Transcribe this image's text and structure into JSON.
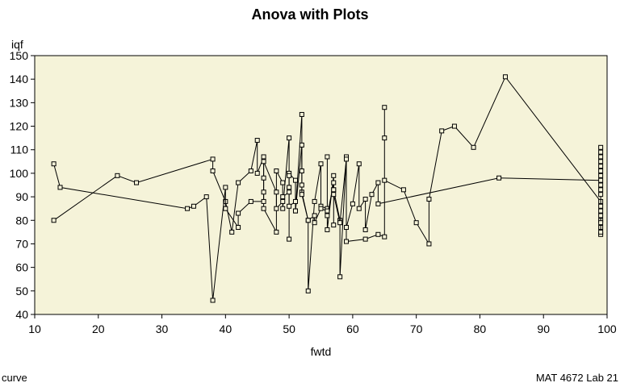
{
  "chart_data": {
    "type": "line",
    "title": "Anova with Plots",
    "xlabel": "fwtd",
    "ylabel": "iqf",
    "xlim": [
      10,
      100
    ],
    "ylim": [
      40,
      150
    ],
    "x_ticks": [
      10,
      20,
      30,
      40,
      50,
      60,
      70,
      80,
      90,
      100
    ],
    "y_ticks": [
      40,
      50,
      60,
      70,
      80,
      90,
      100,
      110,
      120,
      130,
      140,
      150
    ],
    "background": "#f5f3d9",
    "grid": false,
    "legend": "none",
    "marker": "square",
    "series": [
      {
        "points": [
          [
            13,
            80
          ],
          [
            23,
            99
          ],
          [
            26,
            96
          ],
          [
            38,
            106
          ],
          [
            38,
            101
          ],
          [
            40,
            88
          ],
          [
            41,
            75
          ],
          [
            42,
            96
          ],
          [
            44,
            101
          ],
          [
            45,
            114
          ],
          [
            45,
            100
          ],
          [
            46,
            107
          ],
          [
            46,
            85
          ],
          [
            48,
            75
          ],
          [
            48,
            101
          ],
          [
            49,
            96
          ],
          [
            49,
            85
          ],
          [
            50,
            115
          ],
          [
            50,
            72
          ],
          [
            50,
            100
          ],
          [
            51,
            97
          ],
          [
            51,
            84
          ],
          [
            52,
            125
          ],
          [
            52,
            92
          ],
          [
            53,
            80
          ],
          [
            53,
            50
          ],
          [
            54,
            88
          ],
          [
            55,
            104
          ],
          [
            55,
            86
          ],
          [
            56,
            85
          ],
          [
            56,
            107
          ],
          [
            56,
            76
          ],
          [
            57,
            99
          ],
          [
            57,
            78
          ],
          [
            57,
            93
          ],
          [
            58,
            80
          ],
          [
            58,
            56
          ],
          [
            59,
            107
          ],
          [
            59,
            71
          ],
          [
            62,
            72
          ],
          [
            64,
            74
          ],
          [
            65,
            73
          ],
          [
            65,
            128
          ],
          [
            65,
            115
          ],
          [
            65,
            97
          ],
          [
            68,
            93
          ],
          [
            70,
            79
          ],
          [
            72,
            70
          ],
          [
            72,
            89
          ],
          [
            74,
            118
          ],
          [
            76,
            120
          ],
          [
            79,
            111
          ],
          [
            84,
            141
          ],
          [
            99,
            88
          ],
          [
            99,
            80
          ],
          [
            99,
            77
          ]
        ]
      },
      {
        "points": [
          [
            13,
            104
          ],
          [
            14,
            94
          ],
          [
            34,
            85
          ],
          [
            35,
            86
          ],
          [
            37,
            90
          ],
          [
            38,
            46
          ],
          [
            40,
            94
          ],
          [
            40,
            85
          ],
          [
            42,
            77
          ],
          [
            42,
            83
          ],
          [
            44,
            88
          ],
          [
            46,
            88
          ],
          [
            46,
            92
          ],
          [
            46,
            98
          ],
          [
            46,
            105
          ],
          [
            48,
            92
          ],
          [
            48,
            85
          ],
          [
            49,
            88
          ],
          [
            49,
            90
          ],
          [
            50,
            92
          ],
          [
            50,
            99
          ],
          [
            50,
            94
          ],
          [
            50,
            86
          ],
          [
            51,
            88
          ],
          [
            51,
            84
          ],
          [
            52,
            112
          ],
          [
            52,
            101
          ],
          [
            52,
            95
          ],
          [
            52,
            91
          ],
          [
            53,
            80
          ],
          [
            54,
            82
          ],
          [
            54,
            79
          ],
          [
            55,
            85
          ],
          [
            56,
            84
          ],
          [
            56,
            82
          ],
          [
            57,
            96
          ],
          [
            57,
            93
          ],
          [
            57,
            91
          ],
          [
            58,
            79
          ],
          [
            59,
            106
          ],
          [
            59,
            77
          ],
          [
            60,
            87
          ],
          [
            61,
            104
          ],
          [
            61,
            85
          ],
          [
            62,
            89
          ],
          [
            62,
            76
          ],
          [
            63,
            91
          ],
          [
            64,
            96
          ],
          [
            64,
            87
          ],
          [
            83,
            98
          ],
          [
            99,
            97
          ],
          [
            99,
            74
          ],
          [
            99,
            75
          ],
          [
            99,
            79
          ],
          [
            99,
            82
          ],
          [
            99,
            84
          ],
          [
            99,
            86
          ],
          [
            99,
            91
          ],
          [
            99,
            93
          ],
          [
            99,
            95
          ],
          [
            99,
            99
          ],
          [
            99,
            101
          ],
          [
            99,
            103
          ],
          [
            99,
            105
          ],
          [
            99,
            107
          ],
          [
            99,
            109
          ],
          [
            99,
            111
          ]
        ]
      }
    ]
  },
  "footer": {
    "left": "curve",
    "right": "MAT 4672 Lab 21"
  }
}
